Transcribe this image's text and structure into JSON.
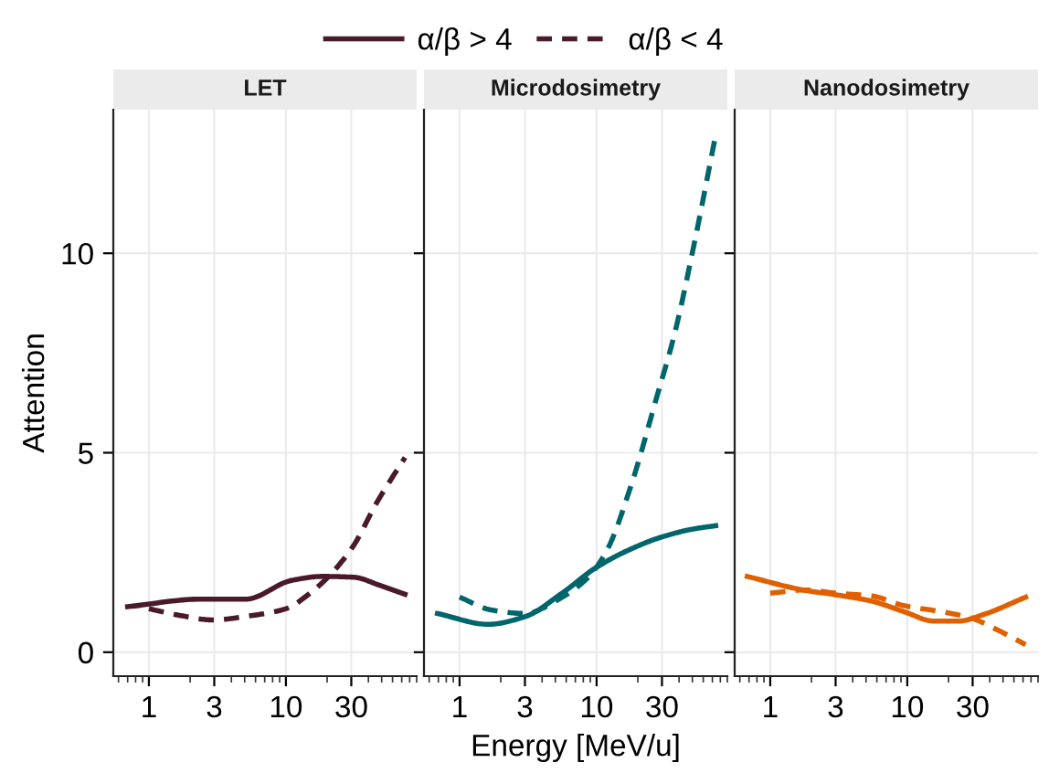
{
  "chart_data": [
    {
      "type": "line",
      "title": "LET",
      "ylabel": "Attention",
      "log": "x",
      "xlim": [
        0.55,
        90
      ],
      "xticks": [
        1,
        3,
        10,
        30
      ],
      "ylim": [
        -0.6,
        13.6
      ],
      "yticks": [
        0,
        5,
        10
      ],
      "grid": true,
      "legend": "top",
      "series": [
        {
          "name": "α/β > 4",
          "color": "#4a1a2c",
          "line_style": "solid",
          "x": [
            0.7,
            2.4,
            5.1,
            11,
            18.5,
            31,
            49,
            74
          ],
          "values": [
            1.14,
            1.33,
            1.33,
            1.8,
            1.9,
            1.88,
            1.67,
            1.45
          ]
        },
        {
          "name": "α/β < 4",
          "color": "#4a1a2c",
          "line_style": "dashed",
          "x": [
            1,
            1.76,
            2.9,
            5.4,
            10,
            15,
            20.5,
            31,
            46,
            74
          ],
          "values": [
            1.09,
            0.91,
            0.81,
            0.91,
            1.09,
            1.48,
            1.9,
            2.66,
            3.75,
            4.88
          ]
        }
      ]
    },
    {
      "type": "line",
      "title": "Microdosimetry",
      "xlabel": "Energy [MeV/u]",
      "log": "x",
      "xlim": [
        0.55,
        90
      ],
      "xticks": [
        1,
        3,
        10,
        30
      ],
      "ylim": [
        -0.6,
        13.6
      ],
      "yticks": [
        0,
        5,
        10
      ],
      "tick_labels": "x",
      "grid": true,
      "series": [
        {
          "color": "#00666b",
          "line_style": "solid",
          "x": [
            0.69,
            1.62,
            3.0,
            5.6,
            9.8,
            16.4,
            30,
            51,
            74
          ],
          "values": [
            0.97,
            0.7,
            0.89,
            1.48,
            2.11,
            2.53,
            2.89,
            3.09,
            3.17
          ]
        },
        {
          "color": "#00666b",
          "line_style": "dashed",
          "x": [
            1,
            1.7,
            3,
            5.3,
            8.8,
            12,
            18,
            27.5,
            37,
            51,
            74
          ],
          "values": [
            1.38,
            1.06,
            0.97,
            1.33,
            1.9,
            2.58,
            4.22,
            6.4,
            7.97,
            10.16,
            12.97
          ]
        }
      ]
    },
    {
      "type": "line",
      "title": "Nanodosimetry",
      "log": "x",
      "xlim": [
        0.55,
        90
      ],
      "xticks": [
        1,
        3,
        10,
        30
      ],
      "ylim": [
        -0.6,
        13.6
      ],
      "yticks": [
        0,
        5,
        10
      ],
      "tick_labels": "x",
      "grid": true,
      "series": [
        {
          "color": "#e06000",
          "line_style": "solid",
          "x": [
            0.68,
            1.73,
            3.0,
            5.5,
            9.4,
            15.7,
            23.7,
            35.7,
            73
          ],
          "values": [
            1.9,
            1.56,
            1.44,
            1.28,
            1.02,
            0.78,
            0.78,
            0.94,
            1.38
          ]
        },
        {
          "color": "#e06000",
          "line_style": "dashed",
          "x": [
            1,
            1.8,
            3,
            5.5,
            9.4,
            17.4,
            29,
            46,
            73
          ],
          "values": [
            1.48,
            1.56,
            1.48,
            1.41,
            1.17,
            1.02,
            0.86,
            0.55,
            0.19
          ]
        }
      ]
    }
  ]
}
